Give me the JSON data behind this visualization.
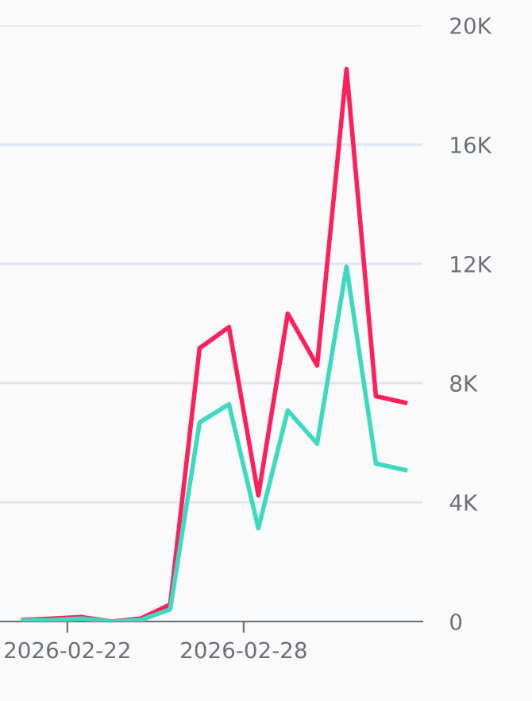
{
  "chart_data": {
    "type": "line",
    "x": [
      "2026-02-20T12:00",
      "2026-02-21T12:00",
      "2026-02-22T12:00",
      "2026-02-23T12:00",
      "2026-02-24T12:00",
      "2026-02-25T12:00",
      "2026-02-26T12:00",
      "2026-02-27T12:00",
      "2026-02-28T12:00",
      "2026-03-01T12:00",
      "2026-03-02T12:00",
      "2026-03-03T12:00",
      "2026-03-04T12:00",
      "2026-03-05T12:00"
    ],
    "series": [
      {
        "color": "#ff1f5a",
        "values": [
          50,
          100,
          150,
          0,
          100,
          570,
          9170,
          9880,
          4230,
          10330,
          8590,
          18540,
          7560,
          7340
        ]
      },
      {
        "color": "#3dd9c1",
        "values": [
          30,
          50,
          100,
          0,
          50,
          410,
          6680,
          7290,
          3130,
          7080,
          5970,
          11910,
          5300,
          5080
        ]
      }
    ],
    "xlim": [
      "2026-02-19T17:00",
      "2026-03-06T02:00"
    ],
    "xticks": [
      {
        "value": "2026-02-22",
        "label": "2026-02-22"
      },
      {
        "value": "2026-02-28",
        "label": "2026-02-28"
      }
    ],
    "ylim": [
      0,
      20000
    ],
    "yticks": [
      {
        "value": 0,
        "label": "0"
      },
      {
        "value": 4000,
        "label": "4K"
      },
      {
        "value": 8000,
        "label": "8K"
      },
      {
        "value": 12000,
        "label": "12K"
      },
      {
        "value": 16000,
        "label": "16K"
      },
      {
        "value": 20000,
        "label": "20K"
      }
    ],
    "grid": "y",
    "legend": false,
    "marker": "none",
    "line_style": "solid"
  }
}
